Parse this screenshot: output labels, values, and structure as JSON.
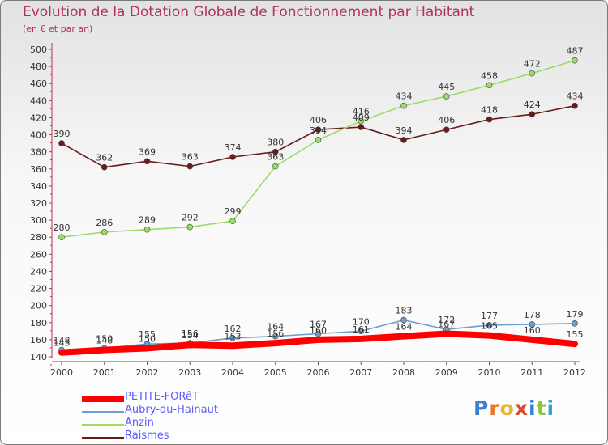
{
  "chart_data": {
    "type": "line",
    "title": "Evolution de la Dotation Globale de Fonctionnement par Habitant",
    "subtitle": "(en € et par an)",
    "categories": [
      "2000",
      "2001",
      "2002",
      "2003",
      "2004",
      "2005",
      "2006",
      "2007",
      "2008",
      "2009",
      "2010",
      "2011",
      "2012"
    ],
    "ylim": [
      140,
      500
    ],
    "ytick_step": 20,
    "grid": false,
    "legend_position": "bottom-left",
    "series": [
      {
        "name": "PETITE-FORêT",
        "color": "#ff0000",
        "values": [
          145,
          148,
          150,
          154,
          153,
          156,
          160,
          161,
          164,
          167,
          165,
          160,
          155
        ],
        "labels_shown": [
          true,
          true,
          true,
          true,
          true,
          true,
          true,
          true,
          true,
          true,
          true,
          true,
          true
        ]
      },
      {
        "name": "Aubry-du-Hainaut",
        "color": "#6b9fcf",
        "values": [
          148,
          150,
          155,
          156,
          162,
          164,
          167,
          170,
          183,
          172,
          177,
          178,
          179
        ],
        "labels_shown": [
          true,
          true,
          true,
          true,
          true,
          true,
          true,
          true,
          true,
          true,
          true,
          true,
          true
        ]
      },
      {
        "name": "Anzin",
        "color": "#99dd66",
        "values": [
          280,
          286,
          289,
          292,
          299,
          363,
          394,
          416,
          434,
          445,
          458,
          472,
          487
        ],
        "labels_shown": [
          true,
          true,
          true,
          true,
          true,
          true,
          true,
          true,
          true,
          true,
          true,
          true,
          true
        ]
      },
      {
        "name": "Raismes",
        "color": "#6b1a1a",
        "values": [
          390,
          362,
          369,
          363,
          374,
          380,
          406,
          409,
          394,
          406,
          418,
          424,
          434
        ],
        "labels_shown": [
          true,
          true,
          true,
          true,
          true,
          true,
          true,
          true,
          true,
          true,
          true,
          true,
          true
        ]
      }
    ]
  },
  "legend": {
    "items": [
      "PETITE-FORêT",
      "Aubry-du-Hainaut",
      "Anzin",
      "Raismes"
    ]
  },
  "logo": {
    "letters": [
      "P",
      "r",
      "o",
      "x",
      "i",
      "t",
      "i"
    ],
    "colors": [
      "#3a7fd5",
      "#e8762b",
      "#e8b52b",
      "#d94b2b",
      "#3a7fd5",
      "#8cc63f",
      "#3a9fd5"
    ]
  }
}
